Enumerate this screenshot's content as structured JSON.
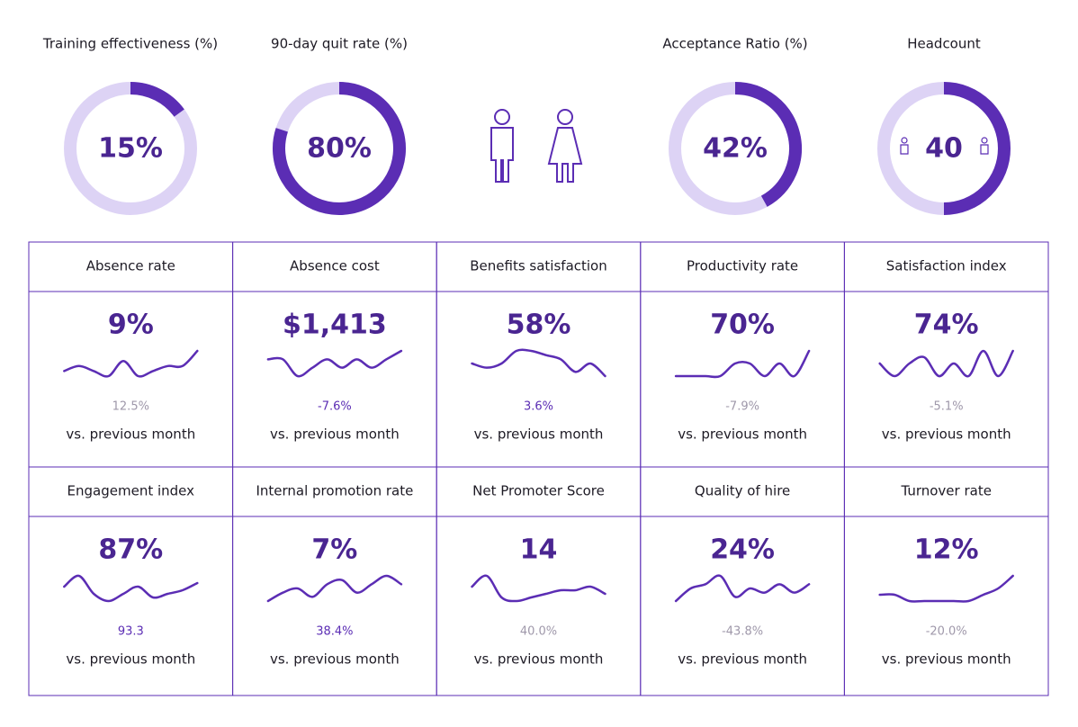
{
  "donuts": [
    {
      "title": "Training effectiveness (%)",
      "value": 15,
      "value_label": "15%"
    },
    {
      "title": "90-day quit rate (%)",
      "value": 80,
      "value_label": "80%"
    },
    {
      "title": "Acceptance Ratio (%)",
      "value": 42,
      "value_label": "42%"
    }
  ],
  "headcount": {
    "title": "Headcount",
    "value": 40,
    "fill": 50
  },
  "colors": {
    "dark": "#5b2db4",
    "light": "#ddd3f5",
    "muted": "#9f98aa"
  },
  "tiles": [
    {
      "title": "Absence rate",
      "value": "9%",
      "change": "12.5%",
      "change_color": "muted",
      "note": "vs. previous month",
      "trend": [
        4,
        5,
        4,
        3,
        6,
        3,
        4,
        5,
        5,
        8
      ]
    },
    {
      "title": "Absence cost",
      "value": "$1,413",
      "change": "-7.6%",
      "change_color": "dark",
      "note": "vs. previous month",
      "trend": [
        5,
        5,
        3,
        4,
        5,
        4,
        5,
        4,
        5,
        6
      ]
    },
    {
      "title": "Benefits satisfaction",
      "value": "58%",
      "change": "3.6%",
      "change_color": "dark",
      "note": "vs. previous month",
      "trend": [
        5,
        4,
        5,
        8,
        8,
        7,
        6,
        3,
        5,
        2
      ]
    },
    {
      "title": "Productivity rate",
      "value": "70%",
      "change": "-7.9%",
      "change_color": "muted",
      "note": "vs. previous month",
      "trend": [
        5,
        5,
        5,
        5,
        5.5,
        5.5,
        5,
        5.5,
        5,
        6
      ]
    },
    {
      "title": "Satisfaction index",
      "value": "74%",
      "change": "-5.1%",
      "change_color": "muted",
      "note": "vs. previous month",
      "trend": [
        5,
        4,
        5,
        5.5,
        4,
        5,
        4,
        6,
        4,
        6
      ]
    },
    {
      "title": "Engagement index",
      "value": "87%",
      "change": "93.3",
      "change_color": "dark",
      "note": "vs. previous month",
      "trend": [
        7,
        10,
        5,
        3,
        5,
        7,
        4,
        5,
        6,
        8
      ]
    },
    {
      "title": "Internal promotion rate",
      "value": "7%",
      "change": "38.4%",
      "change_color": "dark",
      "note": "vs. previous month",
      "trend": [
        3,
        5,
        6,
        4,
        7,
        8,
        5,
        7,
        9,
        7
      ]
    },
    {
      "title": "Net Promoter Score",
      "value": "14",
      "change": "40.0%",
      "change_color": "muted",
      "note": "vs. previous month",
      "trend": [
        7,
        10,
        4,
        3,
        4,
        5,
        6,
        6,
        7,
        5
      ]
    },
    {
      "title": "Quality of hire",
      "value": "24%",
      "change": "-43.8%",
      "change_color": "muted",
      "note": "vs. previous month",
      "trend": [
        2,
        5,
        6,
        8,
        3,
        5,
        4,
        6,
        4,
        6
      ]
    },
    {
      "title": "Turnover rate",
      "value": "12%",
      "change": "-20.0%",
      "change_color": "muted",
      "note": "vs. previous month",
      "trend": [
        5,
        5,
        4,
        4,
        4,
        4,
        4,
        5,
        6,
        8
      ]
    }
  ]
}
